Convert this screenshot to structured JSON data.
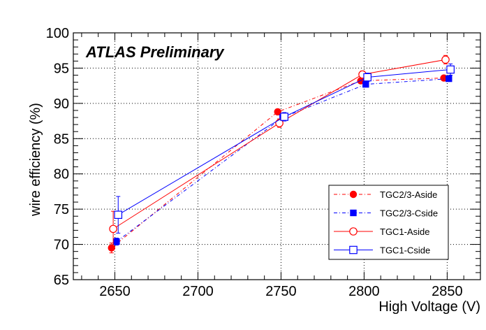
{
  "chart_data": {
    "type": "scatter",
    "annotation": "ATLAS Preliminary",
    "xlabel": "High Voltage (V)",
    "ylabel": "wire efficiency (%)",
    "xlim": [
      2625,
      2870
    ],
    "ylim": [
      65,
      100
    ],
    "x_ticks": [
      "2650",
      "2700",
      "2750",
      "2800",
      "2850"
    ],
    "y_ticks": [
      "65",
      "70",
      "75",
      "80",
      "85",
      "90",
      "95",
      "100"
    ],
    "grid": true,
    "legend_position": "bottom-right",
    "series": [
      {
        "name": "TGC2/3-Aside",
        "color": "#ff0000",
        "marker": "filled-circle",
        "line": "dashed",
        "x": [
          2648,
          2748,
          2798,
          2848
        ],
        "y": [
          69.5,
          88.8,
          93.2,
          93.6
        ],
        "yerr": [
          0.7,
          0.4,
          0.3,
          0.3
        ]
      },
      {
        "name": "TGC2/3-Cside",
        "color": "#0000ff",
        "marker": "filled-square",
        "line": "dashed",
        "x": [
          2651,
          2751,
          2801,
          2851
        ],
        "y": [
          70.4,
          88.0,
          92.7,
          93.5
        ],
        "yerr": [
          0.5,
          0.4,
          0.3,
          0.3
        ]
      },
      {
        "name": "TGC1-Aside",
        "color": "#ff0000",
        "marker": "open-circle",
        "line": "solid",
        "x": [
          2649,
          2749,
          2799,
          2849
        ],
        "y": [
          72.2,
          87.2,
          94.1,
          96.2
        ],
        "yerr": [
          2.5,
          0.6,
          0.5,
          0.6
        ]
      },
      {
        "name": "TGC1-Cside",
        "color": "#0000ff",
        "marker": "open-square",
        "line": "solid",
        "x": [
          2652,
          2752,
          2802,
          2852
        ],
        "y": [
          74.2,
          88.1,
          93.7,
          94.8
        ],
        "yerr": [
          2.6,
          0.6,
          0.6,
          0.8
        ]
      }
    ]
  }
}
